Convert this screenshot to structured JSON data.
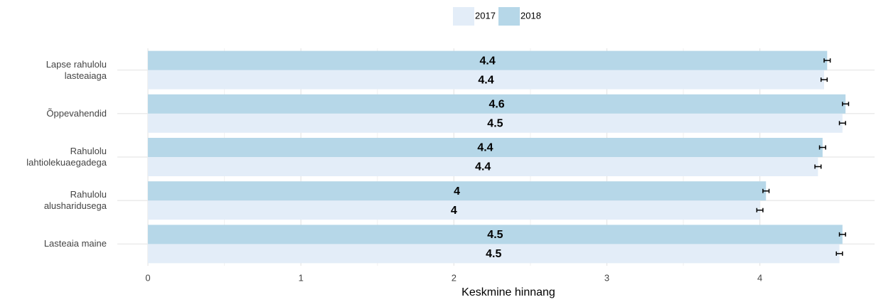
{
  "chart_data": {
    "type": "bar",
    "orientation": "horizontal",
    "x_label": "Keskmine hinnang",
    "categories": [
      "Lapse rahulolu lasteaiaga",
      "Õppevahendid",
      "Rahulolu lahtiolekuaegadega",
      "Rahulolu alusharidusega",
      "Lasteaia maine"
    ],
    "series": [
      {
        "name": "2017",
        "color": "#e3edf8",
        "values": [
          4.42,
          4.54,
          4.38,
          4.0,
          4.52
        ],
        "value_labels": [
          "4.4",
          "4.5",
          "4.4",
          "4",
          "4.5"
        ],
        "errors": [
          0.02,
          0.02,
          0.02,
          0.02,
          0.02
        ]
      },
      {
        "name": "2018",
        "color": "#b6d7e8",
        "values": [
          4.44,
          4.56,
          4.41,
          4.04,
          4.54
        ],
        "value_labels": [
          "4.4",
          "4.6",
          "4.4",
          "4",
          "4.5"
        ],
        "errors": [
          0.02,
          0.02,
          0.02,
          0.02,
          0.02
        ]
      }
    ],
    "xlim": [
      -0.2,
      4.75
    ],
    "xticks": [
      0,
      1,
      2,
      3,
      4
    ],
    "grid": true,
    "legend": "top"
  }
}
